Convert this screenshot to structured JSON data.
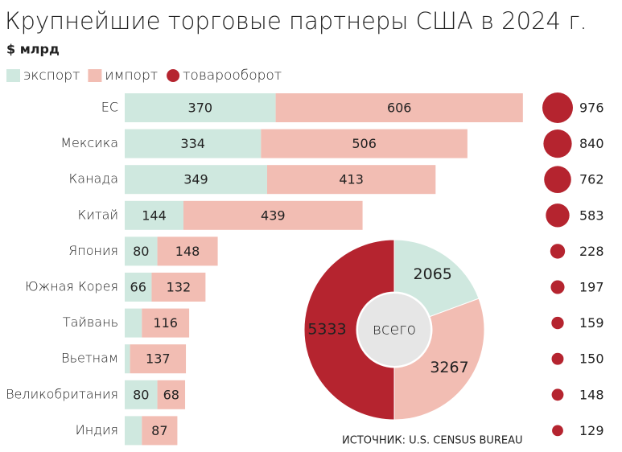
{
  "chart_data": [
    {
      "type": "bar",
      "orientation": "horizontal",
      "stacked": true,
      "title": "Крупнейшие торговые партнеры США в 2024 г.",
      "subtitle": "$ млрд",
      "source": "ИСТОЧНИК: U.S. CENSUS BUREAU",
      "categories": [
        "ЕС",
        "Мексика",
        "Канада",
        "Китай",
        "Япония",
        "Южная Корея",
        "Тайвань",
        "Вьетнам",
        "Великобритания",
        "Индия"
      ],
      "xlim": [
        0,
        1000
      ],
      "legend": "top-left",
      "series": [
        {
          "name": "экспорт",
          "color": "#cfe8df",
          "values": [
            370,
            334,
            349,
            144,
            80,
            66,
            42,
            13,
            80,
            42
          ]
        },
        {
          "name": "импорт",
          "color": "#f2bdb3",
          "values": [
            606,
            506,
            413,
            439,
            148,
            132,
            116,
            137,
            68,
            87
          ]
        },
        {
          "name": "товарооборот",
          "type": "bubble",
          "color": "#b5242f",
          "values": [
            976,
            840,
            762,
            583,
            228,
            197,
            159,
            150,
            148,
            129
          ]
        }
      ]
    },
    {
      "type": "pie",
      "donut": true,
      "center_label": "всего",
      "values": [
        2065,
        3267,
        5333
      ],
      "colors": [
        "#cfe8df",
        "#f2bdb3",
        "#b5242f"
      ]
    }
  ]
}
